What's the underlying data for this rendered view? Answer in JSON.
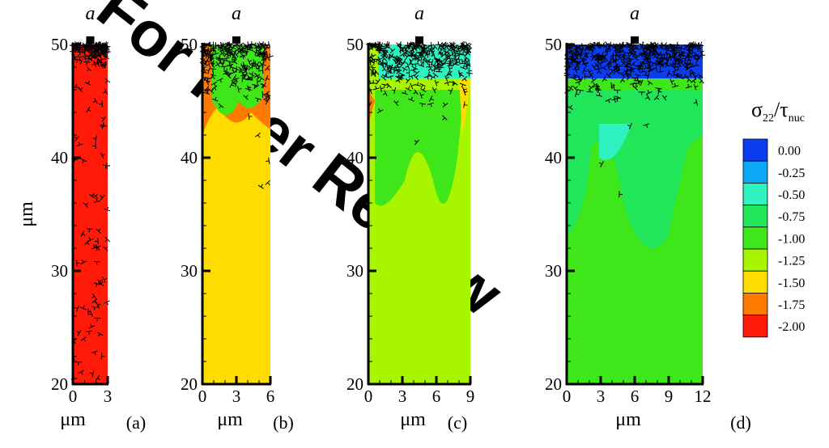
{
  "chart_data": [
    {
      "type": "contour",
      "title": "a",
      "xlabel": "μm",
      "ylabel": "μm",
      "panel_label": "(a)",
      "xlim": [
        0,
        3
      ],
      "ylim": [
        20,
        50
      ],
      "xticks": [
        0,
        3
      ],
      "yticks": [
        20,
        30,
        40,
        50
      ],
      "fill_level": -2
    },
    {
      "type": "contour",
      "title": "a",
      "xlabel": "μm",
      "panel_label": "(b)",
      "xlim": [
        0,
        6
      ],
      "ylim": [
        20,
        50
      ],
      "xticks": [
        0,
        3,
        6
      ],
      "yticks": [
        20,
        30,
        40,
        50
      ],
      "fill_level": -1.5
    },
    {
      "type": "contour",
      "title": "a",
      "xlabel": "μm",
      "panel_label": "(c)",
      "xlim": [
        0,
        9
      ],
      "ylim": [
        20,
        50
      ],
      "xticks": [
        0,
        3,
        6,
        9
      ],
      "yticks": [
        20,
        30,
        40,
        50
      ],
      "fill_level": -1.25
    },
    {
      "type": "contour",
      "title": "a",
      "xlabel": "μm",
      "panel_label": "(d)",
      "xlim": [
        0,
        12
      ],
      "ylim": [
        20,
        50
      ],
      "xticks": [
        0,
        3,
        6,
        9,
        12
      ],
      "yticks": [
        20,
        30,
        40,
        50
      ],
      "fill_level": -1
    }
  ],
  "colorbar": {
    "title": [
      "σ",
      "22",
      "/τ",
      "nuc"
    ],
    "levels": [
      {
        "value": 0,
        "label": "0.00"
      },
      {
        "value": -0.25,
        "label": "-0.25"
      },
      {
        "value": -0.5,
        "label": "-0.50"
      },
      {
        "value": -0.75,
        "label": "-0.75"
      },
      {
        "value": -1,
        "label": "-1.00"
      },
      {
        "value": -1.25,
        "label": "-1.25"
      },
      {
        "value": -1.5,
        "label": "-1.50"
      },
      {
        "value": -1.75,
        "label": "-1.75"
      },
      {
        "value": -2,
        "label": "-2.00"
      }
    ],
    "colors": [
      "#0a3cf0",
      "#0aa8f5",
      "#2ef2c0",
      "#22e65a",
      "#3ee61a",
      "#a8f500",
      "#ffdc00",
      "#ff7a00",
      "#ff1a0a"
    ]
  },
  "watermark": "For Peer Review"
}
